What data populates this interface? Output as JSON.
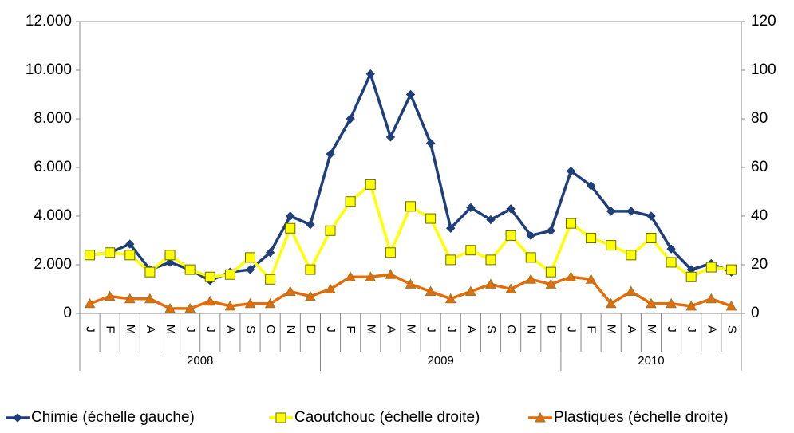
{
  "chart_data": {
    "type": "line",
    "categories": [
      "J",
      "F",
      "M",
      "A",
      "M",
      "J",
      "J",
      "A",
      "S",
      "O",
      "N",
      "D",
      "J",
      "F",
      "M",
      "A",
      "M",
      "J",
      "J",
      "A",
      "S",
      "O",
      "N",
      "D",
      "J",
      "F",
      "M",
      "A",
      "M",
      "J",
      "J",
      "A",
      "S"
    ],
    "groups": [
      {
        "label": "2008",
        "count": 12
      },
      {
        "label": "2009",
        "count": 12
      },
      {
        "label": "2010",
        "count": 9
      }
    ],
    "ylim": [
      0,
      12000
    ],
    "yticks": [
      0,
      {
        "value": 2000,
        "label": "2.000"
      },
      {
        "value": 4000,
        "label": "4.000"
      },
      {
        "value": 6000,
        "label": "6.000"
      },
      {
        "value": 8000,
        "label": "8.000"
      },
      {
        "value": 10000,
        "label": "10.000"
      },
      {
        "value": 12000,
        "label": "12.000"
      }
    ],
    "y2lim": [
      0,
      120
    ],
    "y2ticks": [
      0,
      20,
      40,
      60,
      80,
      100,
      120
    ],
    "series": [
      {
        "name": "Chimie (échelle gauche)",
        "color": "#1f3f7a",
        "marker": "diamond",
        "values": [
          2400,
          2500,
          2850,
          1800,
          2100,
          1800,
          1350,
          1700,
          1800,
          2500,
          4000,
          3650,
          6550,
          8000,
          9850,
          7250,
          9000,
          7000,
          3500,
          4350,
          3850,
          4300,
          3200,
          3400,
          5850,
          5250,
          4200,
          4200,
          4000,
          2650,
          1800,
          2050,
          1700
        ]
      },
      {
        "name": "Caoutchouc (échelle droite)",
        "color": "#ffff00",
        "marker": "square",
        "axis": "y2",
        "values": [
          24,
          25,
          24,
          17,
          24,
          18,
          15,
          16,
          23,
          14,
          35,
          18,
          34,
          46,
          53,
          25,
          44,
          39,
          22,
          26,
          22,
          32,
          23,
          17,
          37,
          31,
          28,
          24,
          31,
          21,
          15,
          19,
          18
        ]
      },
      {
        "name": "Plastiques (échelle droite)",
        "color": "#e46c0a",
        "marker": "triangle",
        "axis": "y2",
        "values": [
          4,
          7,
          6,
          6,
          2,
          2,
          5,
          3,
          4,
          4,
          9,
          7,
          10,
          15,
          15,
          16,
          12,
          9,
          6,
          9,
          12,
          10,
          14,
          12,
          15,
          14,
          4,
          9,
          4,
          4,
          3,
          6,
          3
        ]
      }
    ]
  }
}
